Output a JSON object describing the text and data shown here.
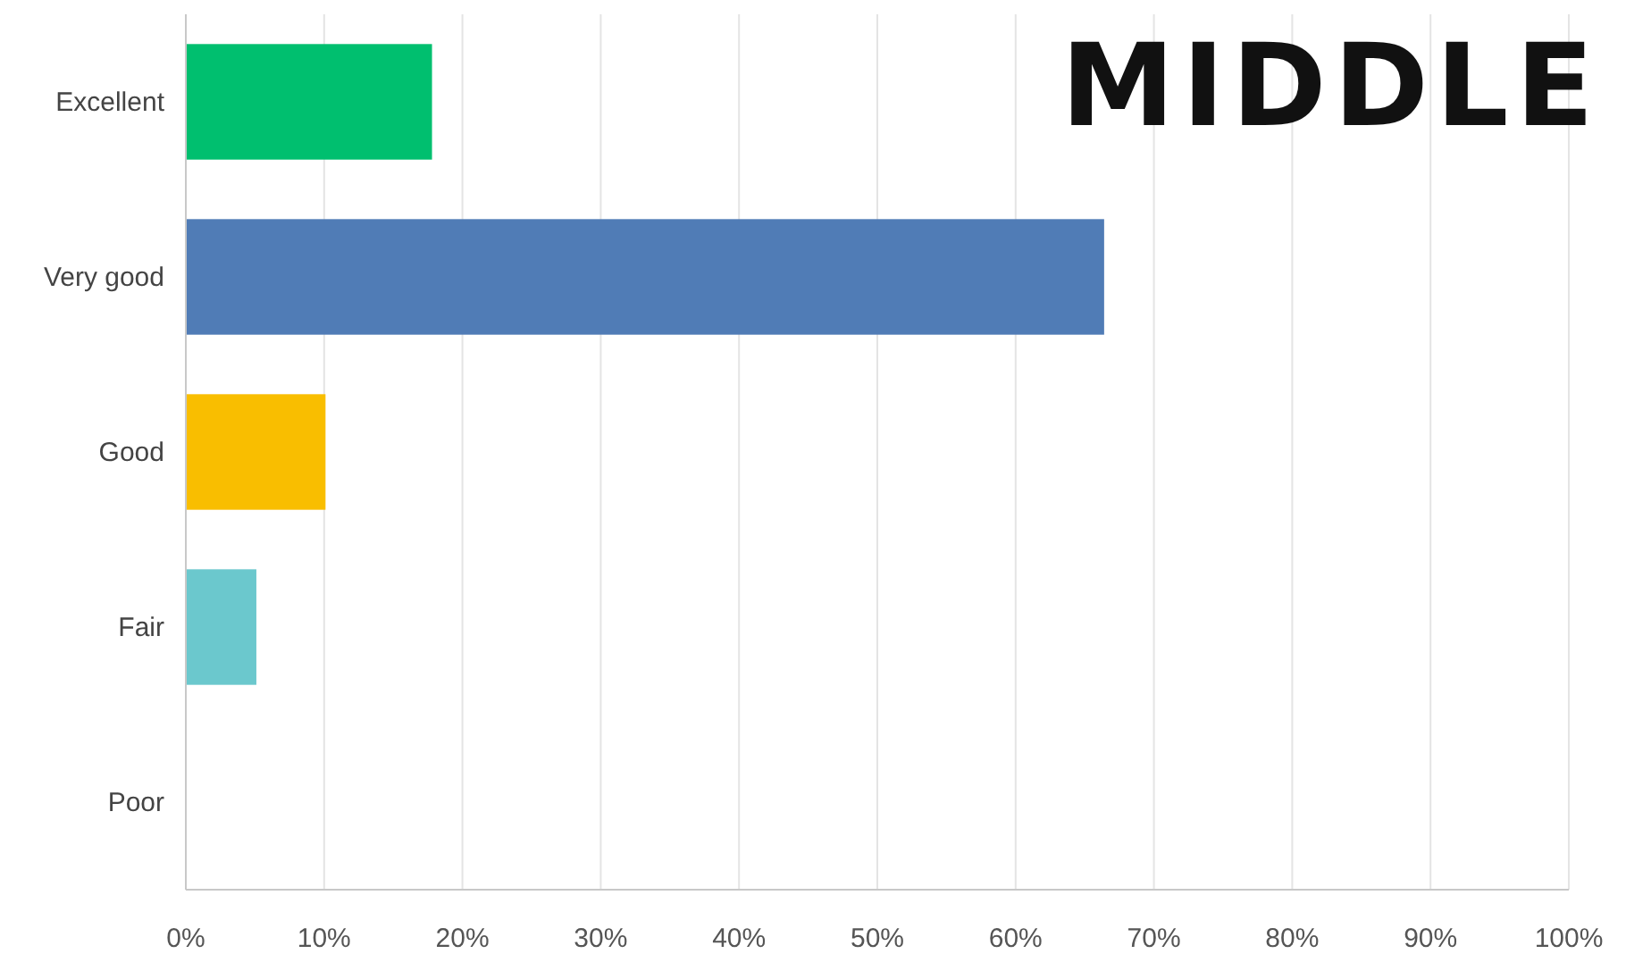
{
  "chart_data": {
    "type": "bar",
    "orientation": "horizontal",
    "annotations": [
      "MIDDLE"
    ],
    "categories": [
      "Excellent",
      "Very good",
      "Good",
      "Fair",
      "Poor"
    ],
    "values": [
      17.8,
      66.4,
      10.1,
      5.1,
      0
    ],
    "colors": [
      "#00bf6f",
      "#507cb6",
      "#f9be00",
      "#6bc8cd",
      "#a0a0a0"
    ],
    "xlim": [
      0,
      100
    ],
    "xticks": [
      {
        "value": 0,
        "label": "0%"
      },
      {
        "value": 10,
        "label": "10%"
      },
      {
        "value": 20,
        "label": "20%"
      },
      {
        "value": 30,
        "label": "30%"
      },
      {
        "value": 40,
        "label": "40%"
      },
      {
        "value": 50,
        "label": "50%"
      },
      {
        "value": 60,
        "label": "60%"
      },
      {
        "value": 70,
        "label": "70%"
      },
      {
        "value": 80,
        "label": "80%"
      },
      {
        "value": 90,
        "label": "90%"
      },
      {
        "value": 100,
        "label": "100%"
      }
    ],
    "grid": "x"
  }
}
